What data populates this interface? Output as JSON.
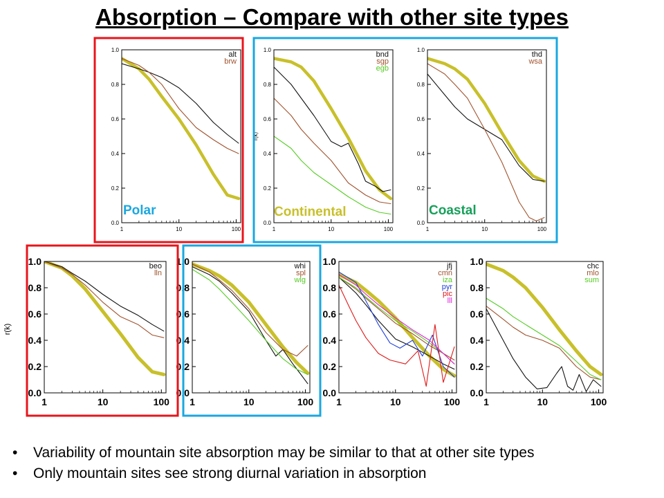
{
  "title": "Absorption – Compare with other site types",
  "bullets": [
    "Variability of mountain site absorption may be similar to that at other site types",
    "Only mountain sites see strong diurnal variation in absorption"
  ],
  "colors": {
    "reference_curve": "#c8c02a",
    "box_red": "#e8141b",
    "box_blue": "#1aa7e0",
    "label_polar": "#1aa7e0",
    "label_continental": "#c8c02a",
    "label_coastal": "#16a05a"
  },
  "region_labels": [
    "Polar",
    "Continental",
    "Coastal"
  ],
  "ylabel_bottom": "r(k)",
  "ylabel_top_partial": "r(k)",
  "chart_data": [
    {
      "type": "line",
      "xscale": "log",
      "xlim": [
        1,
        120
      ],
      "ylim": [
        0,
        1.0
      ],
      "xticks": [
        "1",
        "10",
        "100"
      ],
      "yticks": [
        "0.0",
        "0.2",
        "0.4",
        "0.6",
        "0.8",
        "1.0"
      ],
      "region_label": "Polar",
      "series": [
        {
          "name": "alt",
          "color": "#111111",
          "x": [
            1,
            2,
            3,
            5,
            10,
            20,
            40,
            70,
            110
          ],
          "y": [
            0.92,
            0.89,
            0.87,
            0.84,
            0.78,
            0.69,
            0.58,
            0.51,
            0.46
          ]
        },
        {
          "name": "brw",
          "color": "#a0522d",
          "x": [
            1,
            2,
            3,
            5,
            10,
            20,
            40,
            70,
            110
          ],
          "y": [
            0.95,
            0.91,
            0.87,
            0.8,
            0.66,
            0.55,
            0.48,
            0.43,
            0.4
          ]
        },
        {
          "name": "",
          "color": "#c8c02a",
          "width": 5,
          "x": [
            1,
            2,
            3,
            5,
            10,
            20,
            40,
            70,
            110
          ],
          "y": [
            0.95,
            0.89,
            0.83,
            0.73,
            0.6,
            0.45,
            0.28,
            0.16,
            0.14
          ]
        }
      ]
    },
    {
      "type": "line",
      "xscale": "log",
      "xlim": [
        1,
        120
      ],
      "ylim": [
        0,
        1.0
      ],
      "xticks": [
        "1",
        "10",
        "100"
      ],
      "yticks": [
        "0.0",
        "0.2",
        "0.4",
        "0.6",
        "0.8",
        "1.0"
      ],
      "region_label": "Continental",
      "series": [
        {
          "name": "bnd",
          "color": "#111111",
          "x": [
            1,
            2,
            3,
            5,
            10,
            15,
            20,
            30,
            40,
            60,
            80,
            110
          ],
          "y": [
            0.9,
            0.8,
            0.72,
            0.62,
            0.47,
            0.44,
            0.46,
            0.34,
            0.24,
            0.21,
            0.18,
            0.19
          ]
        },
        {
          "name": "sgp",
          "color": "#a0522d",
          "x": [
            1,
            2,
            3,
            5,
            10,
            20,
            40,
            70,
            110
          ],
          "y": [
            0.72,
            0.62,
            0.54,
            0.46,
            0.36,
            0.23,
            0.16,
            0.12,
            0.11
          ]
        },
        {
          "name": "egb",
          "color": "#55cc22",
          "x": [
            1,
            2,
            3,
            5,
            10,
            20,
            40,
            70,
            110
          ],
          "y": [
            0.5,
            0.43,
            0.36,
            0.29,
            0.22,
            0.15,
            0.09,
            0.06,
            0.05
          ]
        },
        {
          "name": "",
          "color": "#c8c02a",
          "width": 5,
          "x": [
            1,
            2,
            3,
            5,
            10,
            20,
            40,
            70,
            110
          ],
          "y": [
            0.95,
            0.93,
            0.9,
            0.82,
            0.66,
            0.49,
            0.3,
            0.19,
            0.14
          ]
        }
      ]
    },
    {
      "type": "line",
      "xscale": "log",
      "xlim": [
        1,
        120
      ],
      "ylim": [
        0,
        1.0
      ],
      "xticks": [
        "1",
        "10",
        "100"
      ],
      "yticks": [
        "0.0",
        "0.2",
        "0.4",
        "0.6",
        "0.8",
        "1.0"
      ],
      "region_label": "Coastal",
      "series": [
        {
          "name": "thd",
          "color": "#111111",
          "x": [
            1,
            2,
            3,
            5,
            10,
            20,
            40,
            70,
            110
          ],
          "y": [
            0.86,
            0.74,
            0.67,
            0.6,
            0.54,
            0.48,
            0.33,
            0.25,
            0.24
          ]
        },
        {
          "name": "wsa",
          "color": "#a0522d",
          "x": [
            1,
            2,
            3,
            5,
            10,
            20,
            40,
            60,
            80,
            110
          ],
          "y": [
            0.92,
            0.86,
            0.8,
            0.72,
            0.54,
            0.35,
            0.12,
            0.03,
            0.01,
            0.03
          ]
        },
        {
          "name": "",
          "color": "#c8c02a",
          "width": 5,
          "x": [
            1,
            2,
            3,
            5,
            10,
            20,
            40,
            70,
            110
          ],
          "y": [
            0.95,
            0.92,
            0.89,
            0.83,
            0.69,
            0.52,
            0.36,
            0.27,
            0.24
          ]
        }
      ]
    },
    {
      "type": "line",
      "xscale": "log",
      "xlim": [
        1,
        120
      ],
      "ylim": [
        0,
        1.0
      ],
      "xticks": [
        "1",
        "10",
        "100"
      ],
      "yticks": [
        "0.0",
        "0.2",
        "0.4",
        "0.6",
        "0.8",
        "1.0"
      ],
      "region_label": "",
      "series": [
        {
          "name": "beo",
          "color": "#111111",
          "x": [
            1,
            2,
            3,
            5,
            10,
            20,
            40,
            70,
            110
          ],
          "y": [
            1.0,
            0.96,
            0.91,
            0.85,
            0.75,
            0.66,
            0.59,
            0.52,
            0.47
          ]
        },
        {
          "name": "lln",
          "color": "#a0522d",
          "x": [
            1,
            2,
            3,
            5,
            10,
            20,
            40,
            70,
            110
          ],
          "y": [
            1.0,
            0.95,
            0.9,
            0.82,
            0.69,
            0.58,
            0.52,
            0.44,
            0.42
          ]
        },
        {
          "name": "",
          "color": "#c8c02a",
          "width": 5,
          "x": [
            1,
            2,
            3,
            5,
            10,
            20,
            40,
            70,
            110
          ],
          "y": [
            1.0,
            0.95,
            0.89,
            0.79,
            0.62,
            0.45,
            0.27,
            0.16,
            0.14
          ]
        }
      ]
    },
    {
      "type": "line",
      "xscale": "log",
      "xlim": [
        1,
        120
      ],
      "ylim": [
        0,
        1.0
      ],
      "xticks": [
        "1",
        "10",
        "100"
      ],
      "yticks": [
        "0.0",
        "0.2",
        "0.4",
        "0.6",
        "0.8",
        "1.0"
      ],
      "region_label": "",
      "series": [
        {
          "name": "whi",
          "color": "#111111",
          "x": [
            1,
            2,
            3,
            5,
            10,
            20,
            30,
            40,
            60,
            80,
            110
          ],
          "y": [
            0.96,
            0.9,
            0.85,
            0.76,
            0.62,
            0.4,
            0.28,
            0.33,
            0.22,
            0.15,
            0.07
          ]
        },
        {
          "name": "spl",
          "color": "#a0522d",
          "x": [
            1,
            2,
            3,
            5,
            10,
            20,
            40,
            70,
            110
          ],
          "y": [
            0.98,
            0.92,
            0.86,
            0.78,
            0.64,
            0.46,
            0.33,
            0.28,
            0.36
          ]
        },
        {
          "name": "wlg",
          "color": "#55cc22",
          "x": [
            1,
            2,
            3,
            5,
            10,
            20,
            40,
            70,
            110
          ],
          "y": [
            0.94,
            0.86,
            0.79,
            0.69,
            0.55,
            0.4,
            0.26,
            0.18,
            0.14
          ]
        },
        {
          "name": "",
          "color": "#c8c02a",
          "width": 5,
          "x": [
            1,
            2,
            3,
            5,
            10,
            20,
            40,
            70,
            110
          ],
          "y": [
            0.98,
            0.93,
            0.89,
            0.82,
            0.69,
            0.52,
            0.35,
            0.23,
            0.15
          ]
        }
      ]
    },
    {
      "type": "line",
      "xscale": "log",
      "xlim": [
        1,
        120
      ],
      "ylim": [
        0,
        1.0
      ],
      "xticks": [
        "1",
        "10",
        "100"
      ],
      "yticks": [
        "0.0",
        "0.2",
        "0.4",
        "0.6",
        "0.8",
        "1.0"
      ],
      "region_label": "",
      "series": [
        {
          "name": "jfj",
          "color": "#111111",
          "x": [
            1,
            2,
            3,
            5,
            10,
            20,
            40,
            70,
            110
          ],
          "y": [
            0.88,
            0.76,
            0.67,
            0.55,
            0.41,
            0.35,
            0.28,
            0.22,
            0.18
          ]
        },
        {
          "name": "cmn",
          "color": "#a0522d",
          "x": [
            1,
            2,
            3,
            5,
            10,
            20,
            40,
            70,
            110
          ],
          "y": [
            0.88,
            0.79,
            0.72,
            0.64,
            0.53,
            0.45,
            0.36,
            0.3,
            0.25
          ]
        },
        {
          "name": "iza",
          "color": "#55cc22",
          "x": [
            1,
            2,
            3,
            5,
            10,
            20,
            40,
            70,
            110
          ],
          "y": [
            0.88,
            0.8,
            0.73,
            0.65,
            0.55,
            0.47,
            0.38,
            0.3,
            0.22
          ]
        },
        {
          "name": "pyr",
          "color": "#1f3fd8",
          "x": [
            1,
            2,
            3,
            5,
            8,
            12,
            20,
            30,
            45,
            70,
            110
          ],
          "y": [
            0.92,
            0.84,
            0.7,
            0.52,
            0.38,
            0.34,
            0.4,
            0.28,
            0.44,
            0.2,
            0.12
          ]
        },
        {
          "name": "pic",
          "color": "#e01818",
          "x": [
            1,
            1.5,
            2,
            3,
            5,
            8,
            15,
            25,
            35,
            50,
            70,
            110
          ],
          "y": [
            0.82,
            0.66,
            0.55,
            0.42,
            0.3,
            0.25,
            0.22,
            0.32,
            0.05,
            0.52,
            0.08,
            0.35
          ]
        },
        {
          "name": "lll",
          "color": "#e020d8",
          "x": [
            1,
            2,
            3,
            5,
            10,
            20,
            40,
            70,
            110
          ],
          "y": [
            0.9,
            0.82,
            0.75,
            0.67,
            0.57,
            0.48,
            0.4,
            0.3,
            0.22
          ]
        },
        {
          "name": "",
          "color": "#c8c02a",
          "width": 5,
          "x": [
            1,
            2,
            3,
            5,
            10,
            20,
            40,
            70,
            110
          ],
          "y": [
            0.9,
            0.84,
            0.78,
            0.7,
            0.57,
            0.42,
            0.28,
            0.18,
            0.13
          ]
        }
      ]
    },
    {
      "type": "line",
      "xscale": "log",
      "xlim": [
        1,
        120
      ],
      "ylim": [
        0,
        1.0
      ],
      "xticks": [
        "1",
        "10",
        "100"
      ],
      "yticks": [
        "0.0",
        "0.2",
        "0.4",
        "0.6",
        "0.8",
        "1.0"
      ],
      "region_label": "",
      "series": [
        {
          "name": "chc",
          "color": "#111111",
          "x": [
            1,
            1.5,
            2,
            3,
            5,
            8,
            12,
            18,
            22,
            28,
            35,
            45,
            60,
            80,
            110
          ],
          "y": [
            0.64,
            0.5,
            0.4,
            0.26,
            0.12,
            0.03,
            0.04,
            0.15,
            0.2,
            0.05,
            0.02,
            0.14,
            0.01,
            0.1,
            0.05
          ]
        },
        {
          "name": "mlo",
          "color": "#a0522d",
          "x": [
            1,
            2,
            3,
            5,
            10,
            20,
            40,
            70,
            110
          ],
          "y": [
            0.66,
            0.56,
            0.5,
            0.44,
            0.4,
            0.34,
            0.2,
            0.12,
            0.1
          ]
        },
        {
          "name": "sum",
          "color": "#55cc22",
          "x": [
            1,
            2,
            3,
            5,
            10,
            20,
            40,
            70,
            110
          ],
          "y": [
            0.72,
            0.64,
            0.58,
            0.52,
            0.44,
            0.36,
            0.24,
            0.14,
            0.1
          ]
        },
        {
          "name": "",
          "color": "#c8c02a",
          "width": 5,
          "x": [
            1,
            2,
            3,
            5,
            10,
            20,
            40,
            70,
            110
          ],
          "y": [
            0.98,
            0.93,
            0.88,
            0.8,
            0.65,
            0.48,
            0.32,
            0.2,
            0.14
          ]
        }
      ]
    }
  ]
}
